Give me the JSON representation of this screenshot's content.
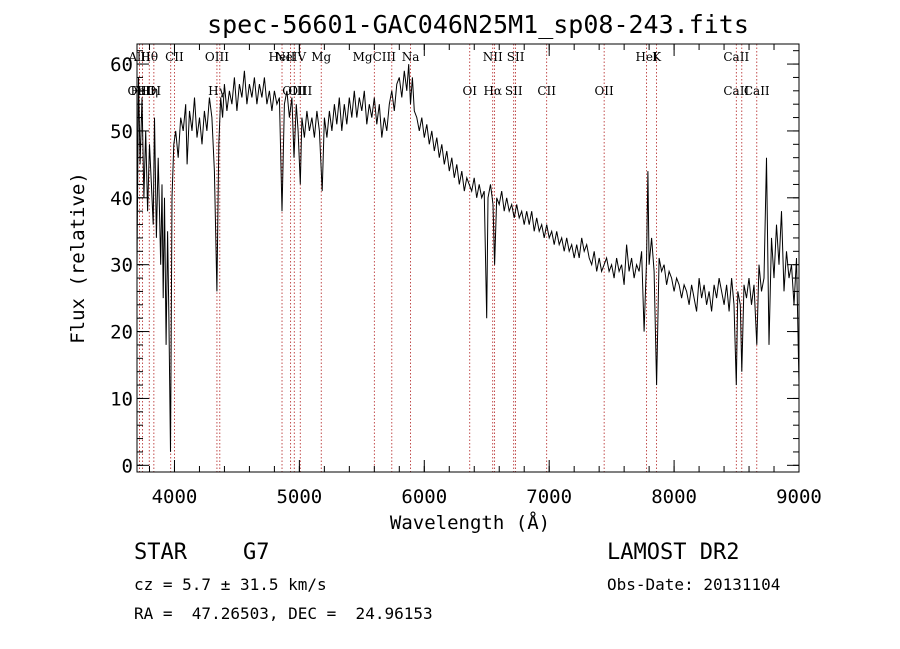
{
  "chart_data": {
    "type": "line",
    "title": "spec-56601-GAC046N25M1_sp08-243.fits",
    "xlabel": "Wavelength (Å)",
    "ylabel": "Flux (relative)",
    "xlim": [
      3700,
      9000
    ],
    "ylim": [
      -1,
      63
    ],
    "xticks": [
      4000,
      5000,
      6000,
      7000,
      8000,
      9000
    ],
    "yticks": [
      0,
      10,
      20,
      30,
      40,
      50,
      60
    ],
    "x_minor_step": 200,
    "y_minor_step": 2,
    "series": [
      {
        "points": [
          [
            3700,
            30
          ],
          [
            3712,
            58
          ],
          [
            3725,
            45
          ],
          [
            3740,
            55
          ],
          [
            3755,
            40
          ],
          [
            3770,
            50
          ],
          [
            3785,
            38
          ],
          [
            3800,
            48
          ],
          [
            3815,
            42
          ],
          [
            3830,
            36
          ],
          [
            3840,
            52
          ],
          [
            3855,
            34
          ],
          [
            3870,
            46
          ],
          [
            3880,
            38
          ],
          [
            3890,
            30
          ],
          [
            3900,
            42
          ],
          [
            3910,
            25
          ],
          [
            3920,
            40
          ],
          [
            3933,
            18
          ],
          [
            3945,
            35
          ],
          [
            3955,
            22
          ],
          [
            3968,
            2
          ],
          [
            3980,
            40
          ],
          [
            3995,
            48
          ],
          [
            4010,
            50
          ],
          [
            4030,
            46
          ],
          [
            4050,
            52
          ],
          [
            4070,
            50
          ],
          [
            4090,
            54
          ],
          [
            4101,
            45
          ],
          [
            4120,
            53
          ],
          [
            4140,
            50
          ],
          [
            4160,
            55
          ],
          [
            4180,
            49
          ],
          [
            4200,
            52
          ],
          [
            4220,
            48
          ],
          [
            4240,
            53
          ],
          [
            4260,
            50
          ],
          [
            4280,
            55
          ],
          [
            4300,
            52
          ],
          [
            4320,
            44
          ],
          [
            4340,
            26
          ],
          [
            4355,
            48
          ],
          [
            4370,
            55
          ],
          [
            4385,
            52
          ],
          [
            4400,
            57
          ],
          [
            4420,
            53
          ],
          [
            4440,
            56
          ],
          [
            4460,
            54
          ],
          [
            4480,
            58
          ],
          [
            4500,
            53
          ],
          [
            4520,
            57
          ],
          [
            4540,
            55
          ],
          [
            4560,
            59
          ],
          [
            4580,
            54
          ],
          [
            4600,
            57
          ],
          [
            4620,
            55
          ],
          [
            4640,
            58
          ],
          [
            4660,
            54
          ],
          [
            4680,
            57
          ],
          [
            4700,
            55
          ],
          [
            4720,
            58
          ],
          [
            4740,
            54
          ],
          [
            4760,
            56
          ],
          [
            4780,
            53
          ],
          [
            4800,
            56
          ],
          [
            4820,
            54
          ],
          [
            4840,
            55
          ],
          [
            4861,
            38
          ],
          [
            4880,
            54
          ],
          [
            4900,
            56
          ],
          [
            4920,
            52
          ],
          [
            4940,
            55
          ],
          [
            4957,
            46
          ],
          [
            4975,
            54
          ],
          [
            4990,
            50
          ],
          [
            5007,
            42
          ],
          [
            5020,
            52
          ],
          [
            5040,
            49
          ],
          [
            5060,
            53
          ],
          [
            5080,
            50
          ],
          [
            5100,
            52
          ],
          [
            5120,
            49
          ],
          [
            5140,
            53
          ],
          [
            5160,
            50
          ],
          [
            5183,
            41
          ],
          [
            5200,
            52
          ],
          [
            5220,
            49
          ],
          [
            5240,
            53
          ],
          [
            5260,
            50
          ],
          [
            5280,
            54
          ],
          [
            5300,
            51
          ],
          [
            5320,
            55
          ],
          [
            5340,
            50
          ],
          [
            5360,
            54
          ],
          [
            5380,
            51
          ],
          [
            5400,
            55
          ],
          [
            5420,
            52
          ],
          [
            5440,
            56
          ],
          [
            5460,
            52
          ],
          [
            5480,
            55
          ],
          [
            5500,
            53
          ],
          [
            5520,
            56
          ],
          [
            5540,
            51
          ],
          [
            5560,
            54
          ],
          [
            5580,
            52
          ],
          [
            5600,
            55
          ],
          [
            5620,
            51
          ],
          [
            5640,
            54
          ],
          [
            5660,
            49
          ],
          [
            5680,
            52
          ],
          [
            5700,
            50
          ],
          [
            5720,
            54
          ],
          [
            5740,
            56
          ],
          [
            5760,
            53
          ],
          [
            5780,
            57
          ],
          [
            5800,
            58
          ],
          [
            5820,
            55
          ],
          [
            5840,
            59
          ],
          [
            5860,
            56
          ],
          [
            5875,
            60
          ],
          [
            5890,
            54
          ],
          [
            5905,
            58
          ],
          [
            5920,
            53
          ],
          [
            5940,
            52
          ],
          [
            5960,
            50
          ],
          [
            5980,
            52
          ],
          [
            6000,
            49
          ],
          [
            6020,
            51
          ],
          [
            6040,
            48
          ],
          [
            6060,
            50
          ],
          [
            6080,
            47
          ],
          [
            6100,
            49
          ],
          [
            6120,
            46
          ],
          [
            6140,
            48
          ],
          [
            6160,
            45
          ],
          [
            6180,
            47
          ],
          [
            6200,
            44
          ],
          [
            6220,
            46
          ],
          [
            6240,
            43
          ],
          [
            6260,
            45
          ],
          [
            6280,
            42
          ],
          [
            6300,
            44
          ],
          [
            6320,
            41
          ],
          [
            6340,
            43
          ],
          [
            6360,
            42
          ],
          [
            6380,
            41
          ],
          [
            6400,
            43
          ],
          [
            6420,
            40
          ],
          [
            6440,
            42
          ],
          [
            6460,
            40
          ],
          [
            6480,
            41
          ],
          [
            6500,
            22
          ],
          [
            6510,
            40
          ],
          [
            6530,
            42
          ],
          [
            6550,
            39
          ],
          [
            6563,
            30
          ],
          [
            6580,
            40
          ],
          [
            6600,
            39
          ],
          [
            6620,
            41
          ],
          [
            6640,
            38
          ],
          [
            6660,
            40
          ],
          [
            6680,
            38
          ],
          [
            6700,
            39
          ],
          [
            6720,
            37
          ],
          [
            6740,
            39
          ],
          [
            6760,
            37
          ],
          [
            6780,
            38
          ],
          [
            6800,
            36
          ],
          [
            6820,
            38
          ],
          [
            6840,
            36
          ],
          [
            6860,
            38
          ],
          [
            6880,
            35
          ],
          [
            6900,
            37
          ],
          [
            6920,
            35
          ],
          [
            6940,
            36
          ],
          [
            6960,
            34
          ],
          [
            6980,
            36
          ],
          [
            7000,
            34
          ],
          [
            7020,
            35
          ],
          [
            7040,
            33
          ],
          [
            7060,
            35
          ],
          [
            7080,
            33
          ],
          [
            7100,
            34
          ],
          [
            7120,
            32
          ],
          [
            7140,
            34
          ],
          [
            7160,
            32
          ],
          [
            7180,
            33
          ],
          [
            7200,
            31
          ],
          [
            7220,
            33
          ],
          [
            7240,
            31
          ],
          [
            7260,
            34
          ],
          [
            7280,
            32
          ],
          [
            7300,
            33
          ],
          [
            7320,
            31
          ],
          [
            7340,
            30
          ],
          [
            7360,
            32
          ],
          [
            7380,
            29
          ],
          [
            7400,
            31
          ],
          [
            7420,
            29
          ],
          [
            7440,
            30
          ],
          [
            7460,
            31
          ],
          [
            7480,
            29
          ],
          [
            7500,
            30
          ],
          [
            7520,
            28
          ],
          [
            7540,
            31
          ],
          [
            7560,
            29
          ],
          [
            7580,
            30
          ],
          [
            7600,
            27
          ],
          [
            7620,
            33
          ],
          [
            7640,
            29
          ],
          [
            7660,
            31
          ],
          [
            7680,
            28
          ],
          [
            7700,
            30
          ],
          [
            7720,
            29
          ],
          [
            7740,
            32
          ],
          [
            7760,
            20
          ],
          [
            7780,
            31
          ],
          [
            7790,
            44
          ],
          [
            7800,
            30
          ],
          [
            7820,
            34
          ],
          [
            7840,
            29
          ],
          [
            7860,
            12
          ],
          [
            7880,
            31
          ],
          [
            7900,
            29
          ],
          [
            7920,
            30
          ],
          [
            7940,
            27
          ],
          [
            7960,
            29
          ],
          [
            7980,
            28
          ],
          [
            8000,
            26
          ],
          [
            8020,
            28
          ],
          [
            8040,
            27
          ],
          [
            8060,
            25
          ],
          [
            8080,
            27
          ],
          [
            8100,
            26
          ],
          [
            8120,
            24
          ],
          [
            8140,
            27
          ],
          [
            8160,
            25
          ],
          [
            8180,
            23
          ],
          [
            8200,
            28
          ],
          [
            8220,
            25
          ],
          [
            8240,
            27
          ],
          [
            8260,
            24
          ],
          [
            8280,
            26
          ],
          [
            8300,
            23
          ],
          [
            8320,
            27
          ],
          [
            8340,
            25
          ],
          [
            8360,
            28
          ],
          [
            8380,
            26
          ],
          [
            8400,
            24
          ],
          [
            8420,
            27
          ],
          [
            8440,
            23
          ],
          [
            8460,
            28
          ],
          [
            8480,
            24
          ],
          [
            8498,
            12
          ],
          [
            8510,
            26
          ],
          [
            8530,
            24
          ],
          [
            8542,
            14
          ],
          [
            8560,
            27
          ],
          [
            8580,
            25
          ],
          [
            8600,
            28
          ],
          [
            8620,
            24
          ],
          [
            8640,
            27
          ],
          [
            8662,
            18
          ],
          [
            8680,
            30
          ],
          [
            8700,
            26
          ],
          [
            8720,
            28
          ],
          [
            8740,
            46
          ],
          [
            8760,
            18
          ],
          [
            8780,
            34
          ],
          [
            8800,
            28
          ],
          [
            8820,
            36
          ],
          [
            8840,
            30
          ],
          [
            8860,
            38
          ],
          [
            8880,
            26
          ],
          [
            8900,
            32
          ],
          [
            8920,
            28
          ],
          [
            8940,
            30
          ],
          [
            8960,
            24
          ],
          [
            8980,
            31
          ],
          [
            9000,
            12
          ]
        ]
      }
    ],
    "lines": [
      {
        "wl": 3720,
        "top": "AlII",
        "bot": "OIII"
      },
      {
        "wl": 3745,
        "top": "",
        "bot": "FeII"
      },
      {
        "wl": 3798,
        "top": "Hθ",
        "bot": "Hη"
      },
      {
        "wl": 3835,
        "top": "",
        "bot": "OI"
      },
      {
        "wl": 3970,
        "top": "",
        "bot": ""
      },
      {
        "wl": 4000,
        "top": "CII",
        "bot": ""
      },
      {
        "wl": 4340,
        "top": "OIII",
        "bot": "Hγ"
      },
      {
        "wl": 4363,
        "top": "",
        "bot": ""
      },
      {
        "wl": 4861,
        "top": "HeII",
        "bot": ""
      },
      {
        "wl": 4930,
        "top": "NeIV",
        "bot": ""
      },
      {
        "wl": 4959,
        "top": "",
        "bot": "OIII"
      },
      {
        "wl": 5007,
        "top": "",
        "bot": "OIII"
      },
      {
        "wl": 5175,
        "top": "Mg",
        "bot": ""
      },
      {
        "wl": 5600,
        "top": "MgCIII",
        "bot": ""
      },
      {
        "wl": 5740,
        "top": "",
        "bot": ""
      },
      {
        "wl": 5890,
        "top": "Na",
        "bot": ""
      },
      {
        "wl": 6364,
        "top": "",
        "bot": "OI"
      },
      {
        "wl": 6548,
        "top": "NII",
        "bot": "Hα"
      },
      {
        "wl": 6563,
        "top": "",
        "bot": ""
      },
      {
        "wl": 6716,
        "top": "",
        "bot": "SII"
      },
      {
        "wl": 6731,
        "top": "SII",
        "bot": ""
      },
      {
        "wl": 6980,
        "top": "",
        "bot": "CII"
      },
      {
        "wl": 7440,
        "top": "",
        "bot": "OII"
      },
      {
        "wl": 7780,
        "top": "HeI",
        "bot": ""
      },
      {
        "wl": 7860,
        "top": "K",
        "bot": ""
      },
      {
        "wl": 8498,
        "top": "CaII",
        "bot": "CaII"
      },
      {
        "wl": 8542,
        "top": "",
        "bot": ""
      },
      {
        "wl": 8662,
        "top": "",
        "bot": "CaII"
      }
    ],
    "line_color": "#b22222",
    "spectrum_color": "#000000"
  },
  "info": {
    "object_class": "STAR",
    "subclass": "G7",
    "survey": "LAMOST DR2",
    "redshift": "cz = 5.7 ± 31.5 km/s",
    "obs_date": "Obs-Date: 20131104",
    "coords": "RA =  47.26503, DEC =  24.96153"
  }
}
